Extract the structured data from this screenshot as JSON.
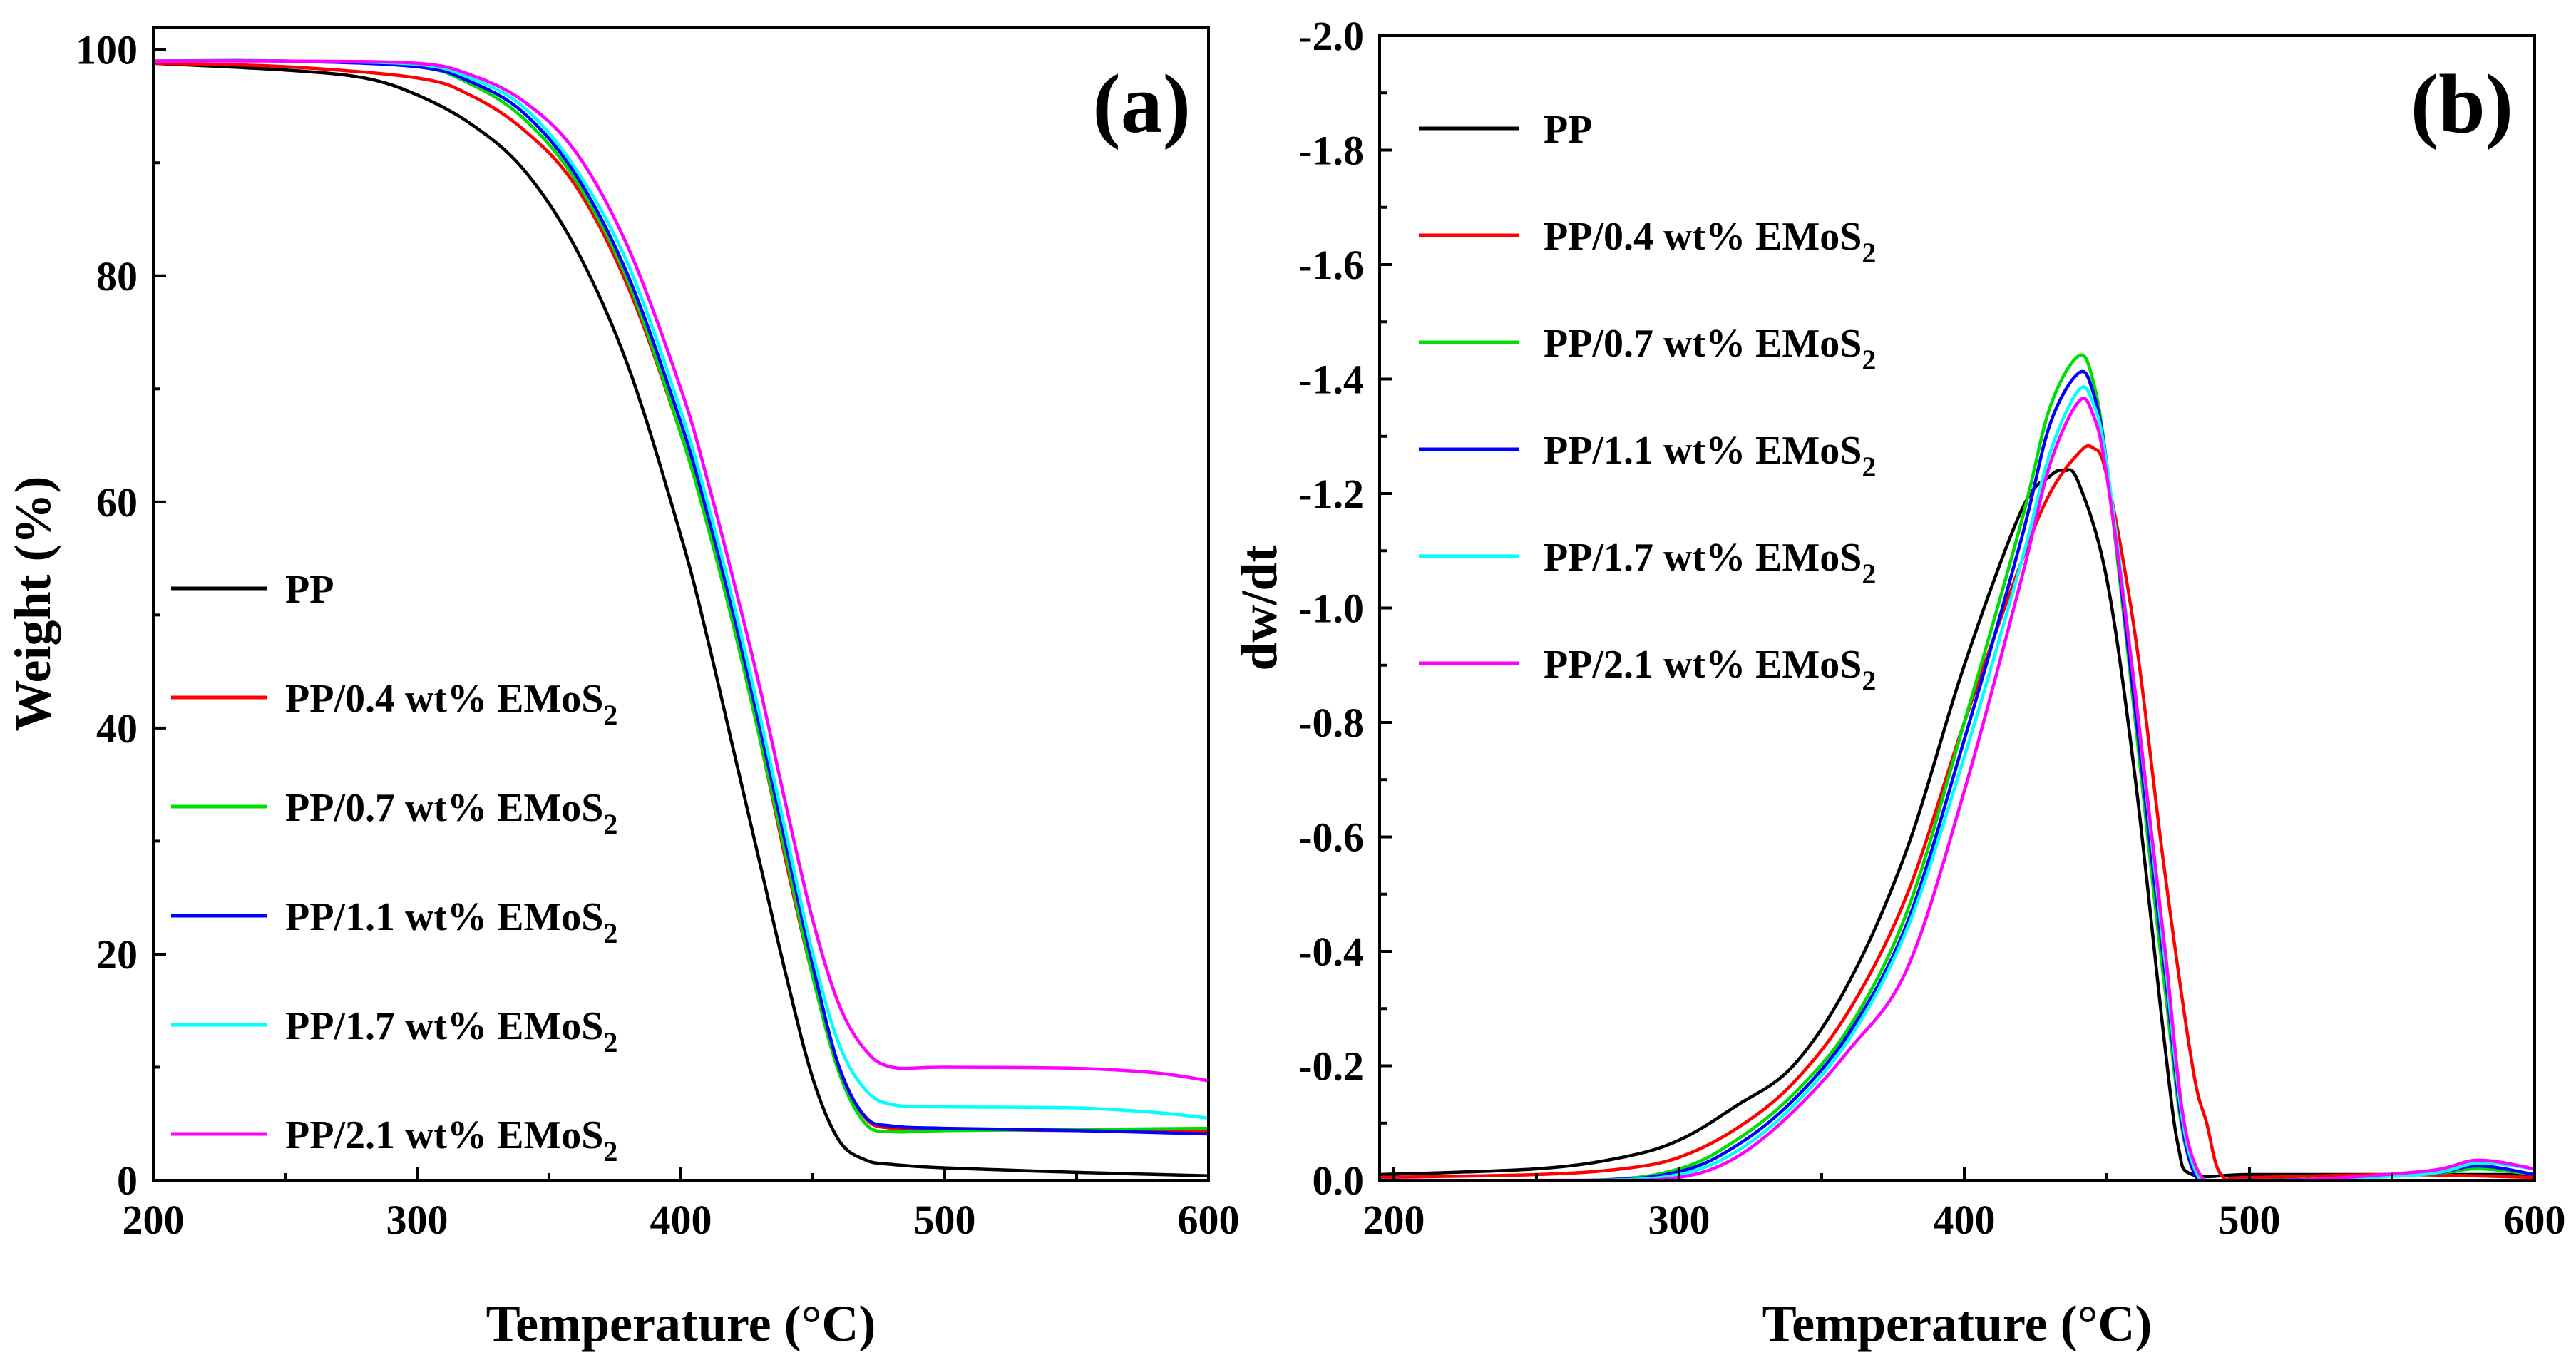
{
  "chart_data": [
    {
      "panel_label": "(a)",
      "type": "line",
      "xlabel": "Temperature (°C)",
      "ylabel": "Weight (%)",
      "xlim": [
        200,
        600
      ],
      "ylim": [
        0,
        102
      ],
      "x_ticks": [
        200,
        300,
        400,
        500,
        600
      ],
      "y_ticks": [
        0,
        20,
        40,
        60,
        80,
        100
      ],
      "legend": {
        "position": "center-left",
        "entries": [
          {
            "main": "PP",
            "sub": ""
          },
          {
            "main": "PP/0.4 wt% EMoS",
            "sub": "2"
          },
          {
            "main": "PP/0.7 wt% EMoS",
            "sub": "2"
          },
          {
            "main": "PP/1.1 wt% EMoS",
            "sub": "2"
          },
          {
            "main": "PP/1.7 wt% EMoS",
            "sub": "2"
          },
          {
            "main": "PP/2.1 wt% EMoS",
            "sub": "2"
          }
        ]
      },
      "series": [
        {
          "name": "PP",
          "color": "#000000",
          "x": [
            200,
            250,
            280,
            300,
            320,
            340,
            360,
            380,
            400,
            410,
            420,
            430,
            440,
            450,
            460,
            470,
            480,
            500,
            550,
            600
          ],
          "y": [
            98.8,
            98.2,
            97.5,
            96,
            93.5,
            89.5,
            82.5,
            72,
            57,
            48,
            38,
            28,
            18,
            9,
            3.5,
            1.8,
            1.4,
            1.1,
            0.7,
            0.4
          ]
        },
        {
          "name": "PP/0.4 wt% EMoS2",
          "color": "#ff0000",
          "x": [
            200,
            250,
            300,
            320,
            340,
            360,
            380,
            400,
            410,
            420,
            430,
            440,
            450,
            460,
            470,
            480,
            500,
            550,
            600
          ],
          "y": [
            98.8,
            98.5,
            97.5,
            96,
            93,
            88,
            79,
            66,
            58,
            49,
            39,
            28,
            18,
            10,
            5.5,
            4.6,
            4.5,
            4.4,
            4.3
          ]
        },
        {
          "name": "PP/0.7 wt% EMoS2",
          "color": "#00dd00",
          "x": [
            200,
            250,
            300,
            320,
            340,
            360,
            380,
            400,
            410,
            420,
            430,
            440,
            450,
            460,
            470,
            480,
            500,
            550,
            600
          ],
          "y": [
            99,
            99,
            98.5,
            97,
            94,
            88.5,
            79.5,
            66,
            58,
            49,
            39,
            28.5,
            18,
            9.5,
            5,
            4.3,
            4.4,
            4.5,
            4.6
          ]
        },
        {
          "name": "PP/1.1 wt% EMoS2",
          "color": "#0000ff",
          "x": [
            200,
            250,
            300,
            320,
            340,
            360,
            380,
            400,
            410,
            420,
            430,
            440,
            450,
            460,
            470,
            480,
            500,
            550,
            600
          ],
          "y": [
            99,
            99,
            98.5,
            97.2,
            94.5,
            89,
            80,
            67,
            59,
            50,
            40,
            29.5,
            19,
            10,
            5.6,
            4.8,
            4.6,
            4.4,
            4.1
          ]
        },
        {
          "name": "PP/1.7 wt% EMoS2",
          "color": "#00ffff",
          "x": [
            200,
            250,
            300,
            320,
            340,
            360,
            380,
            400,
            410,
            420,
            430,
            440,
            450,
            460,
            470,
            480,
            500,
            550,
            580,
            600
          ],
          "y": [
            99,
            99,
            98.7,
            97.5,
            95,
            89.5,
            81,
            68,
            60,
            51,
            41,
            30.5,
            20,
            12,
            8,
            6.7,
            6.5,
            6.4,
            6,
            5.5
          ]
        },
        {
          "name": "PP/2.1 wt% EMoS2",
          "color": "#ff00ff",
          "x": [
            200,
            250,
            300,
            320,
            340,
            360,
            380,
            400,
            410,
            420,
            430,
            440,
            450,
            460,
            470,
            480,
            500,
            550,
            580,
            600
          ],
          "y": [
            99,
            99,
            98.8,
            97.8,
            95.5,
            91,
            82.5,
            70,
            62,
            53,
            43.5,
            33,
            23,
            15.5,
            11.5,
            10,
            10,
            9.9,
            9.5,
            8.8
          ]
        }
      ]
    },
    {
      "panel_label": "(b)",
      "type": "line",
      "xlabel": "Temperature (°C)",
      "ylabel": "dw/dt",
      "xlim": [
        195,
        600
      ],
      "ylim": [
        0,
        -2.0
      ],
      "x_ticks": [
        200,
        300,
        400,
        500,
        600
      ],
      "y_ticks": [
        0.0,
        -0.2,
        -0.4,
        -0.6,
        -0.8,
        -1.0,
        -1.2,
        -1.4,
        -1.6,
        -1.8,
        -2.0
      ],
      "y_tick_labels": [
        "0.0",
        "-0.2",
        "-0.4",
        "-0.6",
        "-0.8",
        "-1.0",
        "-1.2",
        "-1.4",
        "-1.6",
        "-1.8",
        "-2.0"
      ],
      "legend": {
        "position": "top-left",
        "entries": [
          {
            "main": "PP",
            "sub": ""
          },
          {
            "main": "PP/0.4 wt% EMoS",
            "sub": "2"
          },
          {
            "main": "PP/0.7 wt% EMoS",
            "sub": "2"
          },
          {
            "main": "PP/1.1 wt% EMoS",
            "sub": "2"
          },
          {
            "main": "PP/1.7 wt% EMoS",
            "sub": "2"
          },
          {
            "main": "PP/2.1 wt% EMoS",
            "sub": "2"
          }
        ]
      },
      "series": [
        {
          "name": "PP",
          "color": "#000000",
          "x": [
            195,
            250,
            280,
            300,
            320,
            340,
            360,
            380,
            400,
            420,
            430,
            435,
            440,
            450,
            460,
            470,
            475,
            480,
            500,
            550,
            600
          ],
          "y": [
            -0.01,
            -0.02,
            -0.04,
            -0.07,
            -0.13,
            -0.2,
            -0.35,
            -0.58,
            -0.9,
            -1.17,
            -1.23,
            -1.24,
            -1.22,
            -1.05,
            -0.7,
            -0.25,
            -0.06,
            -0.01,
            -0.01,
            -0.01,
            -0.01
          ]
        },
        {
          "name": "PP/0.4 wt% EMoS2",
          "color": "#ff0000",
          "x": [
            195,
            250,
            280,
            300,
            320,
            340,
            360,
            380,
            400,
            420,
            430,
            440,
            445,
            450,
            460,
            470,
            480,
            485,
            490,
            500,
            550,
            600
          ],
          "y": [
            -0.005,
            -0.01,
            -0.02,
            -0.04,
            -0.09,
            -0.17,
            -0.3,
            -0.5,
            -0.8,
            -1.08,
            -1.2,
            -1.27,
            -1.28,
            -1.23,
            -0.95,
            -0.55,
            -0.2,
            -0.1,
            -0.01,
            -0.005,
            -0.01,
            -0.005
          ]
        },
        {
          "name": "PP/0.7 wt% EMoS2",
          "color": "#00dd00",
          "x": [
            195,
            270,
            300,
            320,
            340,
            360,
            380,
            400,
            420,
            430,
            440,
            445,
            450,
            460,
            470,
            480,
            500,
            560,
            580,
            600
          ],
          "y": [
            0,
            0,
            -0.02,
            -0.07,
            -0.15,
            -0.27,
            -0.47,
            -0.8,
            -1.15,
            -1.35,
            -1.44,
            -1.4,
            -1.25,
            -0.8,
            -0.35,
            -0.02,
            0,
            -0.01,
            -0.02,
            -0.01
          ]
        },
        {
          "name": "PP/1.1 wt% EMoS2",
          "color": "#0000ff",
          "x": [
            195,
            270,
            300,
            320,
            340,
            360,
            380,
            400,
            420,
            430,
            440,
            445,
            450,
            460,
            470,
            480,
            500,
            560,
            580,
            600
          ],
          "y": [
            0,
            0,
            -0.015,
            -0.06,
            -0.14,
            -0.26,
            -0.45,
            -0.77,
            -1.12,
            -1.32,
            -1.41,
            -1.38,
            -1.25,
            -0.82,
            -0.38,
            -0.02,
            0,
            -0.01,
            -0.025,
            -0.01
          ]
        },
        {
          "name": "PP/1.7 wt% EMoS2",
          "color": "#00ffff",
          "x": [
            195,
            270,
            300,
            320,
            340,
            360,
            380,
            400,
            420,
            430,
            440,
            445,
            450,
            460,
            470,
            480,
            500,
            560,
            580,
            600
          ],
          "y": [
            0,
            0,
            -0.01,
            -0.05,
            -0.13,
            -0.25,
            -0.44,
            -0.74,
            -1.08,
            -1.27,
            -1.38,
            -1.36,
            -1.25,
            -0.85,
            -0.4,
            -0.03,
            0,
            -0.01,
            -0.03,
            -0.02
          ]
        },
        {
          "name": "PP/2.1 wt% EMoS2",
          "color": "#ff00ff",
          "x": [
            195,
            270,
            300,
            320,
            340,
            360,
            380,
            400,
            420,
            430,
            440,
            445,
            450,
            460,
            470,
            480,
            500,
            560,
            580,
            600
          ],
          "y": [
            0,
            0,
            -0.005,
            -0.04,
            -0.12,
            -0.23,
            -0.37,
            -0.68,
            -1.05,
            -1.25,
            -1.36,
            -1.34,
            -1.23,
            -0.85,
            -0.42,
            -0.04,
            0,
            -0.015,
            -0.035,
            -0.02
          ]
        }
      ]
    }
  ]
}
